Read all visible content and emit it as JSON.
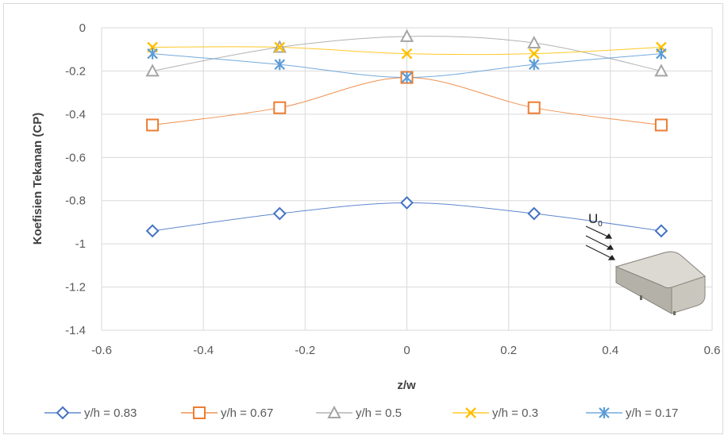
{
  "chart_data": {
    "type": "scatter",
    "title": "",
    "xlabel": "z/w",
    "ylabel": "Koefisien Tekanan (CP)",
    "xlim": [
      -0.6,
      0.6
    ],
    "ylim": [
      -1.4,
      0
    ],
    "xticks": [
      -0.6,
      -0.4,
      -0.2,
      0,
      0.2,
      0.4,
      0.6
    ],
    "xtick_labels": [
      "-0.6",
      "-0.4",
      "-0.2",
      "0",
      "0.2",
      "0.4",
      "0.6"
    ],
    "yticks": [
      0,
      -0.2,
      -0.4,
      -0.6,
      -0.8,
      -1,
      -1.2,
      -1.4
    ],
    "ytick_labels": [
      "0",
      "-0.2",
      "-0.4",
      "-0.6",
      "-0.8",
      "-1",
      "-1.2",
      "-1.4"
    ],
    "grid": true,
    "smooth_lines": true,
    "legend_position": "bottom",
    "x": [
      -0.5,
      -0.25,
      0,
      0.25,
      0.5
    ],
    "series": [
      {
        "name": "y/h = 0.83",
        "color": "#4472c4",
        "marker": "diamond",
        "values": [
          -0.94,
          -0.86,
          -0.81,
          -0.86,
          -0.94
        ]
      },
      {
        "name": "y/h = 0.67",
        "color": "#ed7d31",
        "marker": "square",
        "values": [
          -0.45,
          -0.37,
          -0.23,
          -0.37,
          -0.45
        ]
      },
      {
        "name": "y/h = 0.5",
        "color": "#a5a5a5",
        "marker": "triangle",
        "values": [
          -0.2,
          -0.09,
          -0.04,
          -0.07,
          -0.2
        ]
      },
      {
        "name": "y/h = 0.3",
        "color": "#ffc000",
        "marker": "x",
        "values": [
          -0.09,
          -0.09,
          -0.12,
          -0.12,
          -0.09
        ]
      },
      {
        "name": "y/h = 0.17",
        "color": "#5b9bd5",
        "marker": "star",
        "values": [
          -0.12,
          -0.17,
          -0.23,
          -0.17,
          -0.12
        ]
      }
    ],
    "inset": {
      "label": "U",
      "subscript": "0",
      "description": "wind arrows toward a rounded box model"
    }
  }
}
